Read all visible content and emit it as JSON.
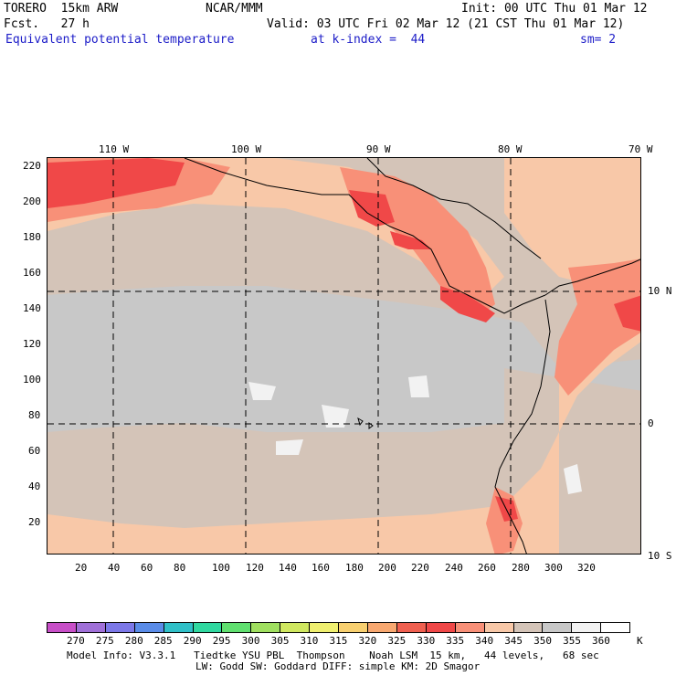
{
  "header": {
    "model": "TORERO  15km ARW",
    "org": "NCAR/MMM",
    "init": "Init: 00 UTC Thu 01 Mar 12",
    "fcst": "Fcst.   27 h",
    "valid": "Valid: 03 UTC Fri 02 Mar 12 (21 CST Thu 01 Mar 12)",
    "field": "Equivalent potential temperature",
    "level": "at k-index =  44",
    "smooth": "sm= 2"
  },
  "top_lon_labels": [
    "110 W",
    "100 W",
    "90 W",
    "80 W",
    "70 W"
  ],
  "right_lat_labels": [
    "10 N",
    "0",
    "10 S"
  ],
  "y_grid_labels": [
    "220",
    "200",
    "180",
    "160",
    "140",
    "120",
    "100",
    "80",
    "60",
    "40",
    "20"
  ],
  "x_grid_labels": [
    "20",
    "40",
    "60",
    "80",
    "100",
    "120",
    "140",
    "160",
    "180",
    "200",
    "220",
    "240",
    "260",
    "280",
    "300",
    "320"
  ],
  "colorbar": {
    "unit": "K",
    "labels": [
      "270",
      "275",
      "280",
      "285",
      "290",
      "295",
      "300",
      "305",
      "310",
      "315",
      "320",
      "325",
      "330",
      "335",
      "340",
      "345",
      "350",
      "355",
      "360"
    ],
    "colors": [
      "#c84fc8",
      "#a070d8",
      "#7c78e8",
      "#5a8ce8",
      "#30c0c8",
      "#30d8a0",
      "#60e070",
      "#a0e060",
      "#d0e860",
      "#f0f070",
      "#f8d070",
      "#f8a870",
      "#f06050",
      "#f04848",
      "#f89078",
      "#f8c8a8",
      "#d4c4b8",
      "#c8c8c8",
      "#f2f2f2",
      "#ffffff"
    ]
  },
  "footer": {
    "line1": "Model Info: V3.3.1   Tiedtke YSU PBL  Thompson    Noah LSM  15 km,   44 levels,   68 sec",
    "line2": "LW: Godd SW: Goddard DIFF: simple KM: 2D Smagor"
  },
  "map_palette": {
    "ocean_base": "#c8c8c8",
    "warm_tan": "#d4c4b8",
    "peach": "#f8c8a8",
    "salmon": "#f89078",
    "red": "#f04848",
    "white": "#f2f2f2"
  }
}
